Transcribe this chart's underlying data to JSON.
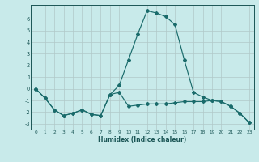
{
  "xlabel": "Humidex (Indice chaleur)",
  "x": [
    0,
    1,
    2,
    3,
    4,
    5,
    6,
    7,
    8,
    9,
    10,
    11,
    12,
    13,
    14,
    15,
    16,
    17,
    18,
    19,
    20,
    21,
    22,
    23
  ],
  "line_upper": [
    0.0,
    -0.8,
    -1.8,
    -2.3,
    -2.1,
    -1.8,
    -2.2,
    -2.3,
    -0.5,
    0.3,
    2.5,
    4.7,
    6.7,
    6.5,
    6.2,
    5.5,
    2.5,
    -0.3,
    -0.7,
    -1.0,
    -1.1,
    -1.5,
    -2.1,
    -2.9
  ],
  "line_lower": [
    0.0,
    -0.8,
    -1.8,
    -2.3,
    -2.1,
    -1.8,
    -2.2,
    -2.3,
    -0.5,
    -0.3,
    -1.5,
    -1.4,
    -1.3,
    -1.3,
    -1.3,
    -1.2,
    -1.1,
    -1.1,
    -1.1,
    -1.0,
    -1.1,
    -1.5,
    -2.1,
    -2.9
  ],
  "background_color": "#c8eaea",
  "line_color": "#1a6b6b",
  "grid_color": "#b0c8c8",
  "ylim": [
    -3.5,
    7.2
  ],
  "xlim": [
    -0.5,
    23.5
  ],
  "yticks": [
    -3,
    -2,
    -1,
    0,
    1,
    2,
    3,
    4,
    5,
    6
  ],
  "xticks": [
    0,
    1,
    2,
    3,
    4,
    5,
    6,
    7,
    8,
    9,
    10,
    11,
    12,
    13,
    14,
    15,
    16,
    17,
    18,
    19,
    20,
    21,
    22,
    23
  ],
  "xtick_labels": [
    "0",
    "1",
    "2",
    "3",
    "4",
    "5",
    "6",
    "7",
    "8",
    "9",
    "10",
    "11",
    "12",
    "13",
    "14",
    "15",
    "16",
    "17",
    "18",
    "19",
    "20",
    "21",
    "22",
    "23"
  ]
}
